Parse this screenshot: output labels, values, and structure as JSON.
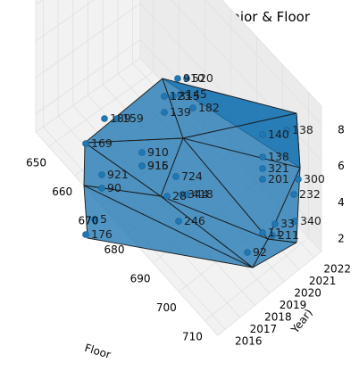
{
  "chart_data": {
    "type": "scatter",
    "subtype": "3d-scatter-with-trisurf-hull",
    "title": "Hostel People According to Major & Floor",
    "xlabel": "Floor",
    "ylabel": "Year)",
    "zlabel": "",
    "x_ticks": [
      "650",
      "660",
      "670",
      "680",
      "690",
      "700",
      "710"
    ],
    "y_ticks": [
      "2016",
      "2017",
      "2018",
      "2019",
      "2020",
      "2021",
      "2022"
    ],
    "z_ticks": [
      "2",
      "4",
      "6",
      "8"
    ],
    "xlim": [
      645,
      715
    ],
    "ylim": [
      2015.5,
      2022.5
    ],
    "zlim": [
      1,
      9
    ],
    "grid": true,
    "surface_color": "#1f77b4",
    "point_color": "#1f77b4",
    "point_labels": [
      "910",
      "520",
      "123",
      "315",
      "189",
      "159",
      "169",
      "139",
      "910",
      "916",
      "915",
      "724",
      "921",
      "90",
      "28",
      "5",
      "176",
      "246",
      "344",
      "418",
      "140",
      "138",
      "138",
      "321",
      "33",
      "11",
      "92",
      "232",
      "300",
      "340",
      "201",
      "211",
      "182",
      "145"
    ]
  }
}
